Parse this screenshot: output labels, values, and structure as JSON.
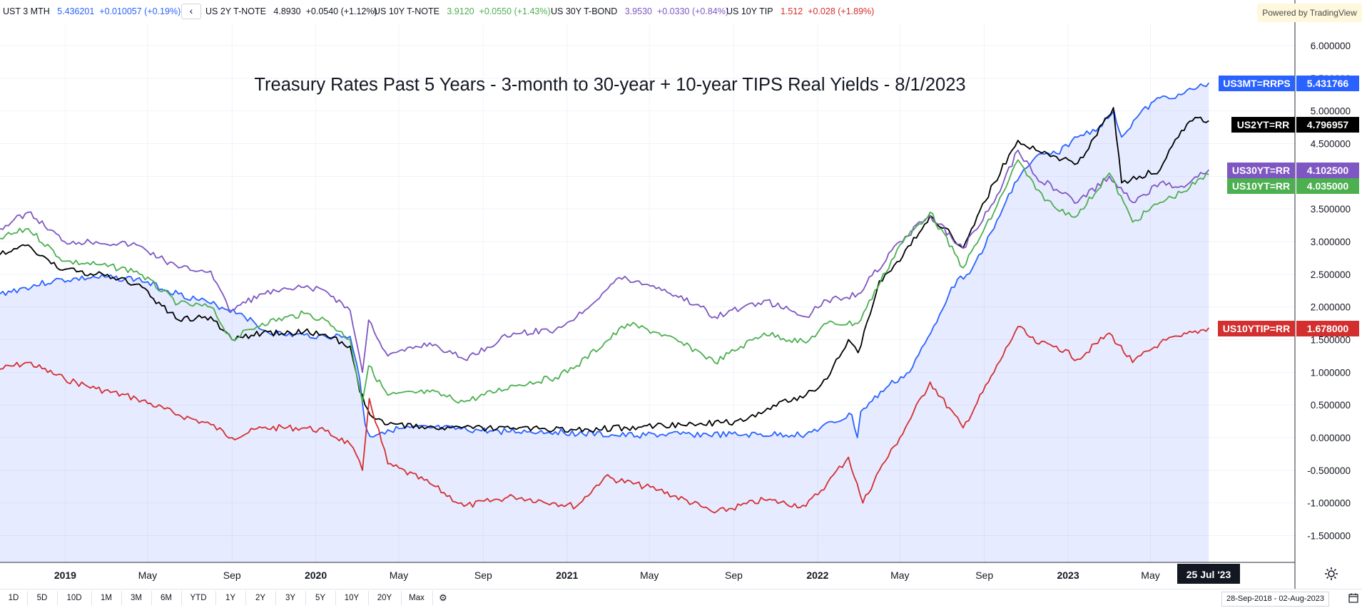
{
  "topbar": {
    "quotes": [
      {
        "name": "UST 3 MTH",
        "last": "5.436201",
        "change": "+0.010057 (+0.19%)",
        "color": "#2962ff"
      },
      {
        "name": "US 2Y T-NOTE",
        "last": "4.8930",
        "change": "+0.0540 (+1.12%)",
        "color": "#131722"
      },
      {
        "name": "US 10Y T-NOTE",
        "last": "3.9120",
        "change": "+0.0550 (+1.43%)",
        "color": "#4caf50"
      },
      {
        "name": "US 30Y T-BOND",
        "last": "3.9530",
        "change": "+0.0330 (+0.84%)",
        "color": "#7e57c2"
      },
      {
        "name": "US 10Y TIP",
        "last": "1.512",
        "change": "+0.028 (+1.89%)",
        "color": "#d32f2f"
      }
    ],
    "back_icon": "chevron-left-icon",
    "powered_by": "Powered by TradingView"
  },
  "chart_data": {
    "type": "line",
    "title": "Treasury Rates Past 5 Years - 3-month to 30-year + 10-year TIPS Real Yields - 8/1/2023",
    "x_ticks": [
      "2019",
      "May",
      "Sep",
      "2020",
      "May",
      "Sep",
      "2021",
      "May",
      "Sep",
      "2022",
      "May",
      "Sep",
      "2023",
      "May"
    ],
    "y_ticks": [
      "6.000000",
      "5.500000",
      "5.000000",
      "4.500000",
      "4.000000",
      "3.500000",
      "3.000000",
      "2.500000",
      "2.000000",
      "1.500000",
      "1.000000",
      "0.500000",
      "0.000000",
      "-0.500000",
      "-1.000000",
      "-1.500000"
    ],
    "ylim": [
      -1.9,
      6.5
    ],
    "x_range": [
      "2018-09-28",
      "2023-08-02"
    ],
    "crosshair_date": "25 Jul '23",
    "grid": true,
    "series": [
      {
        "name": "US3MT=RRPS",
        "last_label": "5.431766",
        "color": "#2962ff",
        "fill": true,
        "points": [
          [
            "2018-09-28",
            2.2
          ],
          [
            "2018-12-15",
            2.4
          ],
          [
            "2019-02-15",
            2.45
          ],
          [
            "2019-04-15",
            2.43
          ],
          [
            "2019-06-15",
            2.2
          ],
          [
            "2019-08-01",
            2.05
          ],
          [
            "2019-09-15",
            1.9
          ],
          [
            "2019-10-15",
            1.65
          ],
          [
            "2019-11-15",
            1.57
          ],
          [
            "2019-12-15",
            1.57
          ],
          [
            "2020-01-15",
            1.55
          ],
          [
            "2020-02-20",
            1.55
          ],
          [
            "2020-03-05",
            0.9
          ],
          [
            "2020-03-13",
            0.2
          ],
          [
            "2020-03-20",
            0.02
          ],
          [
            "2020-04-15",
            0.12
          ],
          [
            "2020-06-15",
            0.15
          ],
          [
            "2020-09-15",
            0.1
          ],
          [
            "2020-12-15",
            0.09
          ],
          [
            "2021-03-15",
            0.03
          ],
          [
            "2021-06-15",
            0.05
          ],
          [
            "2021-09-15",
            0.04
          ],
          [
            "2021-12-15",
            0.05
          ],
          [
            "2022-02-20",
            0.35
          ],
          [
            "2022-02-28",
            0.0
          ],
          [
            "2022-03-05",
            0.4
          ],
          [
            "2022-04-15",
            0.8
          ],
          [
            "2022-05-15",
            1.0
          ],
          [
            "2022-06-15",
            1.6
          ],
          [
            "2022-07-15",
            2.3
          ],
          [
            "2022-08-15",
            2.6
          ],
          [
            "2022-09-15",
            3.2
          ],
          [
            "2022-10-15",
            3.9
          ],
          [
            "2022-11-15",
            4.3
          ],
          [
            "2022-12-15",
            4.35
          ],
          [
            "2023-01-15",
            4.6
          ],
          [
            "2023-02-15",
            4.75
          ],
          [
            "2023-03-09",
            5.0
          ],
          [
            "2023-03-20",
            4.6
          ],
          [
            "2023-04-15",
            4.95
          ],
          [
            "2023-05-15",
            5.2
          ],
          [
            "2023-06-15",
            5.25
          ],
          [
            "2023-07-25",
            5.43
          ]
        ]
      },
      {
        "name": "US2YT=RR",
        "last_label": "4.796957",
        "color": "#000000",
        "points": [
          [
            "2018-09-28",
            2.8
          ],
          [
            "2018-11-08",
            2.95
          ],
          [
            "2018-12-20",
            2.6
          ],
          [
            "2019-02-15",
            2.5
          ],
          [
            "2019-04-15",
            2.35
          ],
          [
            "2019-06-15",
            1.8
          ],
          [
            "2019-08-01",
            1.85
          ],
          [
            "2019-09-01",
            1.5
          ],
          [
            "2019-10-15",
            1.6
          ],
          [
            "2019-12-15",
            1.62
          ],
          [
            "2020-01-15",
            1.58
          ],
          [
            "2020-02-20",
            1.4
          ],
          [
            "2020-03-05",
            0.7
          ],
          [
            "2020-03-20",
            0.35
          ],
          [
            "2020-04-15",
            0.2
          ],
          [
            "2020-07-15",
            0.15
          ],
          [
            "2020-10-15",
            0.15
          ],
          [
            "2021-01-15",
            0.12
          ],
          [
            "2021-04-15",
            0.16
          ],
          [
            "2021-07-15",
            0.22
          ],
          [
            "2021-09-15",
            0.25
          ],
          [
            "2021-10-20",
            0.45
          ],
          [
            "2021-12-15",
            0.65
          ],
          [
            "2022-01-15",
            0.9
          ],
          [
            "2022-02-15",
            1.5
          ],
          [
            "2022-03-01",
            1.3
          ],
          [
            "2022-04-01",
            2.4
          ],
          [
            "2022-05-01",
            2.7
          ],
          [
            "2022-06-14",
            3.4
          ],
          [
            "2022-07-15",
            3.1
          ],
          [
            "2022-08-01",
            2.9
          ],
          [
            "2022-09-15",
            3.9
          ],
          [
            "2022-10-20",
            4.55
          ],
          [
            "2022-11-15",
            4.4
          ],
          [
            "2022-12-15",
            4.3
          ],
          [
            "2023-01-15",
            4.2
          ],
          [
            "2023-03-08",
            5.05
          ],
          [
            "2023-03-20",
            3.9
          ],
          [
            "2023-04-15",
            4.0
          ],
          [
            "2023-05-15",
            4.1
          ],
          [
            "2023-06-15",
            4.7
          ],
          [
            "2023-07-05",
            4.9
          ],
          [
            "2023-07-25",
            4.85
          ]
        ]
      },
      {
        "name": "US30YT=RR",
        "last_label": "4.102500",
        "color": "#7e57c2",
        "points": [
          [
            "2018-09-28",
            3.2
          ],
          [
            "2018-11-08",
            3.45
          ],
          [
            "2018-12-31",
            3.0
          ],
          [
            "2019-02-15",
            3.0
          ],
          [
            "2019-04-15",
            2.95
          ],
          [
            "2019-06-15",
            2.6
          ],
          [
            "2019-08-01",
            2.55
          ],
          [
            "2019-08-28",
            1.95
          ],
          [
            "2019-10-15",
            2.2
          ],
          [
            "2019-12-15",
            2.3
          ],
          [
            "2020-01-15",
            2.25
          ],
          [
            "2020-02-20",
            1.95
          ],
          [
            "2020-03-09",
            1.0
          ],
          [
            "2020-03-18",
            1.8
          ],
          [
            "2020-04-15",
            1.25
          ],
          [
            "2020-06-15",
            1.45
          ],
          [
            "2020-08-04",
            1.2
          ],
          [
            "2020-10-15",
            1.6
          ],
          [
            "2020-12-15",
            1.65
          ],
          [
            "2021-01-15",
            1.85
          ],
          [
            "2021-03-18",
            2.45
          ],
          [
            "2021-05-15",
            2.3
          ],
          [
            "2021-07-15",
            2.0
          ],
          [
            "2021-08-04",
            1.85
          ],
          [
            "2021-10-15",
            2.1
          ],
          [
            "2021-12-15",
            1.85
          ],
          [
            "2022-01-15",
            2.1
          ],
          [
            "2022-03-01",
            2.2
          ],
          [
            "2022-05-01",
            3.0
          ],
          [
            "2022-06-14",
            3.4
          ],
          [
            "2022-08-01",
            2.9
          ],
          [
            "2022-09-15",
            3.6
          ],
          [
            "2022-10-20",
            4.4
          ],
          [
            "2022-11-15",
            4.0
          ],
          [
            "2022-12-15",
            3.8
          ],
          [
            "2023-01-15",
            3.6
          ],
          [
            "2023-03-02",
            4.0
          ],
          [
            "2023-04-05",
            3.6
          ],
          [
            "2023-05-15",
            3.9
          ],
          [
            "2023-06-15",
            3.85
          ],
          [
            "2023-07-25",
            4.1
          ]
        ]
      },
      {
        "name": "US10YT=RR",
        "last_label": "4.035000",
        "color": "#4caf50",
        "points": [
          [
            "2018-09-28",
            3.05
          ],
          [
            "2018-11-08",
            3.2
          ],
          [
            "2018-12-31",
            2.7
          ],
          [
            "2019-02-15",
            2.65
          ],
          [
            "2019-04-15",
            2.55
          ],
          [
            "2019-06-15",
            2.05
          ],
          [
            "2019-08-01",
            2.0
          ],
          [
            "2019-09-01",
            1.5
          ],
          [
            "2019-10-15",
            1.75
          ],
          [
            "2019-12-15",
            1.9
          ],
          [
            "2020-01-15",
            1.8
          ],
          [
            "2020-02-20",
            1.5
          ],
          [
            "2020-03-09",
            0.55
          ],
          [
            "2020-03-18",
            1.1
          ],
          [
            "2020-04-15",
            0.65
          ],
          [
            "2020-06-15",
            0.7
          ],
          [
            "2020-08-04",
            0.55
          ],
          [
            "2020-10-15",
            0.8
          ],
          [
            "2020-12-15",
            0.92
          ],
          [
            "2021-01-15",
            1.1
          ],
          [
            "2021-03-30",
            1.74
          ],
          [
            "2021-05-15",
            1.6
          ],
          [
            "2021-07-15",
            1.3
          ],
          [
            "2021-08-04",
            1.15
          ],
          [
            "2021-10-15",
            1.6
          ],
          [
            "2021-12-15",
            1.45
          ],
          [
            "2022-01-15",
            1.75
          ],
          [
            "2022-03-01",
            1.75
          ],
          [
            "2022-05-01",
            2.95
          ],
          [
            "2022-06-14",
            3.45
          ],
          [
            "2022-08-01",
            2.6
          ],
          [
            "2022-09-15",
            3.45
          ],
          [
            "2022-10-20",
            4.25
          ],
          [
            "2022-11-15",
            3.8
          ],
          [
            "2022-12-15",
            3.5
          ],
          [
            "2023-01-15",
            3.4
          ],
          [
            "2023-03-02",
            4.05
          ],
          [
            "2023-04-05",
            3.3
          ],
          [
            "2023-05-15",
            3.6
          ],
          [
            "2023-06-15",
            3.75
          ],
          [
            "2023-07-25",
            4.03
          ]
        ]
      },
      {
        "name": "US10YTIP=RR",
        "last_label": "1.678000",
        "color": "#d32f2f",
        "points": [
          [
            "2018-09-28",
            1.05
          ],
          [
            "2018-11-08",
            1.15
          ],
          [
            "2018-12-31",
            0.9
          ],
          [
            "2019-02-15",
            0.75
          ],
          [
            "2019-04-15",
            0.6
          ],
          [
            "2019-06-15",
            0.35
          ],
          [
            "2019-08-01",
            0.2
          ],
          [
            "2019-09-01",
            0.0
          ],
          [
            "2019-10-15",
            0.15
          ],
          [
            "2019-12-15",
            0.15
          ],
          [
            "2020-01-15",
            0.1
          ],
          [
            "2020-02-20",
            -0.1
          ],
          [
            "2020-03-09",
            -0.5
          ],
          [
            "2020-03-19",
            0.6
          ],
          [
            "2020-04-15",
            -0.4
          ],
          [
            "2020-06-15",
            -0.7
          ],
          [
            "2020-08-04",
            -1.05
          ],
          [
            "2020-10-15",
            -0.9
          ],
          [
            "2020-12-15",
            -1.0
          ],
          [
            "2021-01-15",
            -1.05
          ],
          [
            "2021-02-25",
            -0.6
          ],
          [
            "2021-05-15",
            -0.8
          ],
          [
            "2021-07-15",
            -1.05
          ],
          [
            "2021-08-04",
            -1.15
          ],
          [
            "2021-10-15",
            -0.95
          ],
          [
            "2021-12-15",
            -1.05
          ],
          [
            "2022-01-15",
            -0.7
          ],
          [
            "2022-02-15",
            -0.3
          ],
          [
            "2022-03-08",
            -1.0
          ],
          [
            "2022-04-01",
            -0.5
          ],
          [
            "2022-05-01",
            0.0
          ],
          [
            "2022-06-14",
            0.85
          ],
          [
            "2022-08-01",
            0.15
          ],
          [
            "2022-09-15",
            1.0
          ],
          [
            "2022-10-20",
            1.7
          ],
          [
            "2022-11-15",
            1.45
          ],
          [
            "2022-12-15",
            1.4
          ],
          [
            "2023-01-15",
            1.2
          ],
          [
            "2023-03-02",
            1.6
          ],
          [
            "2023-04-05",
            1.15
          ],
          [
            "2023-05-15",
            1.45
          ],
          [
            "2023-06-15",
            1.55
          ],
          [
            "2023-07-25",
            1.68
          ]
        ]
      }
    ]
  },
  "bottombar": {
    "ranges": [
      "1D",
      "5D",
      "10D",
      "1M",
      "3M",
      "6M",
      "YTD",
      "1Y",
      "2Y",
      "3Y",
      "5Y",
      "10Y",
      "20Y",
      "Max"
    ],
    "gear_icon": "gear-icon",
    "date_range": "28-Sep-2018  -  02-Aug-2023",
    "calendar_icon": "calendar-icon"
  }
}
